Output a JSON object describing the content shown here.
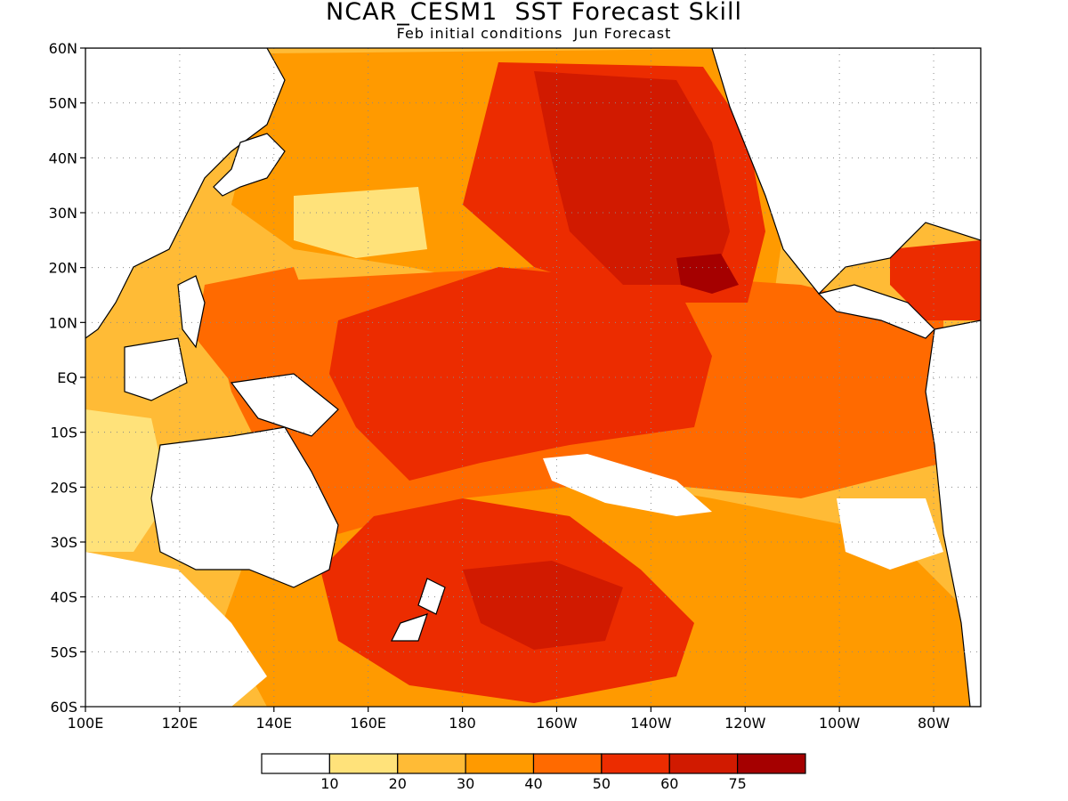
{
  "title": "NCAR_CESM1  SST Forecast Skill",
  "subtitle": "Feb initial conditions  Jun Forecast",
  "map": {
    "lat_labels": [
      "60N",
      "50N",
      "40N",
      "30N",
      "20N",
      "10N",
      "EQ",
      "10S",
      "20S",
      "30S",
      "40S",
      "50S",
      "60S"
    ],
    "lon_labels": [
      "100E",
      "120E",
      "140E",
      "160E",
      "180",
      "160W",
      "140W",
      "120W",
      "100W",
      "80W"
    ],
    "lon_range_deg_east": [
      100,
      290
    ],
    "lat_range_deg": [
      -60,
      60
    ],
    "grid": "dotted"
  },
  "colorbar": {
    "ticks": [
      "10",
      "20",
      "30",
      "40",
      "50",
      "60",
      "75"
    ],
    "colors": [
      "#ffffff",
      "#ffe27a",
      "#ffbb36",
      "#ff9a00",
      "#ff6a00",
      "#ec2c00",
      "#d11a00",
      "#a50000"
    ]
  },
  "regions": [
    {
      "name": "ocean-base",
      "color": "#ffbb36"
    },
    {
      "name": "north-pacific",
      "color": "#ff9a00"
    },
    {
      "name": "south-pacific",
      "color": "#ff9a00"
    },
    {
      "name": "tropical-band",
      "color": "#ff6a00"
    },
    {
      "name": "central-north-pacific",
      "color": "#ec2c00"
    },
    {
      "name": "central-south-pacific",
      "color": "#ec2c00"
    },
    {
      "name": "equatorial-core",
      "color": "#ec2c00"
    },
    {
      "name": "northeast-pacific-core",
      "color": "#d11a00"
    },
    {
      "name": "hawaii-east-core",
      "color": "#a50000"
    },
    {
      "name": "southeast-of-newzealand-core",
      "color": "#d11a00"
    },
    {
      "name": "west-pacific-warm-pool",
      "color": "#ff6a00"
    },
    {
      "name": "low-skill-south-pacific",
      "color": "#ffffff"
    },
    {
      "name": "low-skill-southeast-pacific",
      "color": "#ffffff"
    },
    {
      "name": "low-skill-west-australia",
      "color": "#ffe27a"
    },
    {
      "name": "low-skill-south-indian",
      "color": "#ffffff"
    },
    {
      "name": "low-skill-north-pacific",
      "color": "#ffe27a"
    },
    {
      "name": "caribbean",
      "color": "#ec2c00"
    }
  ]
}
